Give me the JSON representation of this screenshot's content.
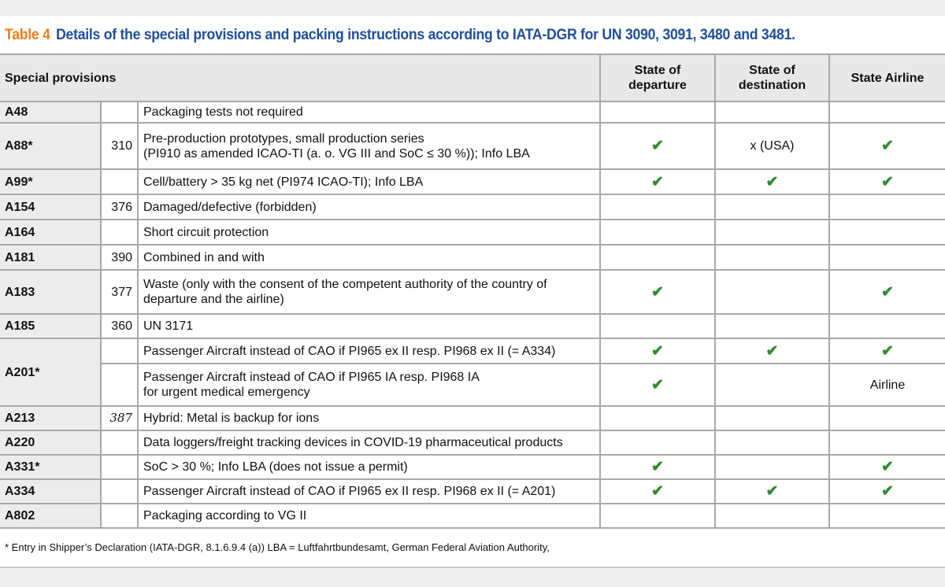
{
  "title": {
    "number": "Table 4",
    "text": "Details of the special provisions and packing instructions according to IATA-DGR for UN 3090, 3091, 3480 and 3481."
  },
  "headers": {
    "special_provisions": "Special provisions",
    "departure": "State of departure",
    "destination": "State of destination",
    "airline": "State Airline"
  },
  "check_color": "#2f8c2f",
  "rows": [
    {
      "code": "A48",
      "pi": "",
      "desc": "Packaging tests not required",
      "dep": "",
      "dest": "",
      "air": ""
    },
    {
      "code": "A88*",
      "pi": "310",
      "desc": "Pre-production prototypes, small production series\n(PI910 as amended ICAO-TI (a. o. VG III and SoC ≤ 30 %)); Info LBA",
      "dep": "✔",
      "dest": "x (USA)",
      "air": "✔"
    },
    {
      "code": "A99*",
      "pi": "",
      "desc": "Cell/battery > 35 kg net (PI974 ICAO-TI); Info LBA",
      "dep": "✔",
      "dest": "✔",
      "air": "✔"
    },
    {
      "code": "A154",
      "pi": "376",
      "desc": "Damaged/defective (forbidden)",
      "dep": "",
      "dest": "",
      "air": ""
    },
    {
      "code": "A164",
      "pi": "",
      "desc": "Short circuit protection",
      "dep": "",
      "dest": "",
      "air": ""
    },
    {
      "code": "A181",
      "pi": "390",
      "desc": "Combined in and with",
      "dep": "",
      "dest": "",
      "air": ""
    },
    {
      "code": "A183",
      "pi": "377",
      "desc": "Waste (only with the consent of the competent authority of the country of\ndeparture and the airline)",
      "dep": "✔",
      "dest": "",
      "air": "✔"
    },
    {
      "code": "A185",
      "pi": "360",
      "desc": "UN 3171",
      "dep": "",
      "dest": "",
      "air": ""
    },
    {
      "code": "A201*",
      "pi": "",
      "desc": "Passenger Aircraft instead of CAO if PI965 ex II resp. PI968 ex II (= A334)",
      "dep": "✔",
      "dest": "✔",
      "air": "✔"
    },
    {
      "code": "",
      "pi": "",
      "desc": "Passenger Aircraft instead of CAO if PI965 IA resp. PI968 IA\nfor urgent medical emergency",
      "dep": "✔",
      "dest": "",
      "air": "Airline"
    },
    {
      "code": "A213",
      "pi": "387",
      "desc": "Hybrid: Metal is backup for ions",
      "dep": "",
      "dest": "",
      "air": ""
    },
    {
      "code": "A220",
      "pi": "",
      "desc": "Data loggers/freight tracking devices in COVID-19 pharmaceutical products",
      "dep": "",
      "dest": "",
      "air": ""
    },
    {
      "code": "A331*",
      "pi": "",
      "desc": "SoC > 30 %; Info LBA (does not issue a permit)",
      "dep": "✔",
      "dest": "",
      "air": "✔"
    },
    {
      "code": "A334",
      "pi": "",
      "desc": "Passenger Aircraft instead of CAO if PI965 ex II resp. PI968 ex II (= A201)",
      "dep": "✔",
      "dest": "✔",
      "air": "✔"
    },
    {
      "code": "A802",
      "pi": "",
      "desc": "Packaging according to VG II",
      "dep": "",
      "dest": "",
      "air": ""
    }
  ],
  "footnote": "* Entry in Shipper’s Declaration (IATA-DGR, 8.1.6.9.4 (a))  LBA = Luftfahrtbundesamt, German Federal Aviation Authority,"
}
